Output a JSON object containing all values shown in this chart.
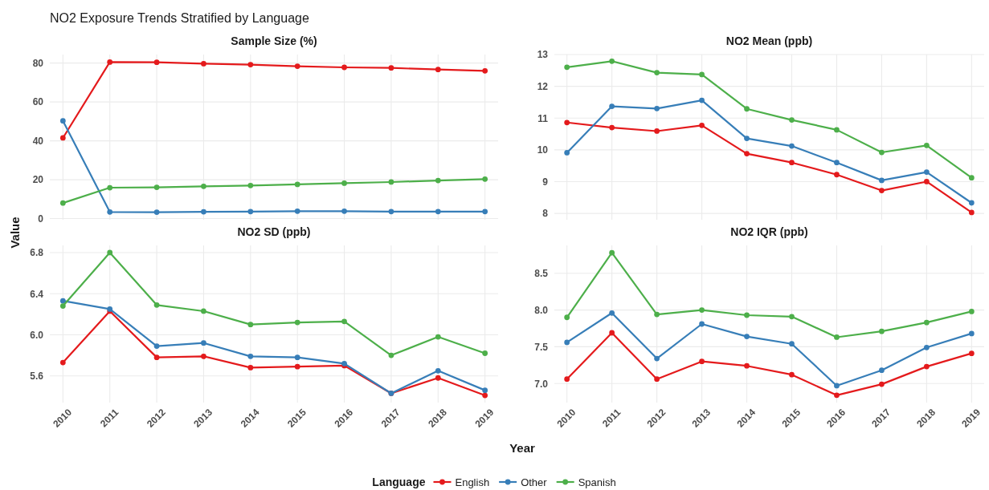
{
  "chart_data": [
    {
      "type": "line",
      "title": "Sample Size (%)",
      "annotations": [
        "NO2 Exposure Trends Stratified by Language"
      ],
      "ylabel": "Value",
      "legend_title": "Language",
      "legend": "bottom",
      "grid": true,
      "marker": "circle",
      "line_style": "solid",
      "tick_labels": "y",
      "categories": [
        "2010",
        "2011",
        "2012",
        "2013",
        "2014",
        "2015",
        "2016",
        "2017",
        "2018",
        "2019"
      ],
      "ylim": [
        -0.6,
        84.4
      ],
      "yticks": [
        0,
        20,
        40,
        60,
        80
      ],
      "series": [
        {
          "name": "English",
          "color": "#e41a1c",
          "values": [
            41.5,
            80.5,
            80.4,
            79.7,
            79.2,
            78.4,
            77.8,
            77.5,
            76.7,
            76.0
          ]
        },
        {
          "name": "Other",
          "color": "#377eb8",
          "values": [
            50.3,
            3.4,
            3.3,
            3.5,
            3.6,
            3.8,
            3.8,
            3.6,
            3.6,
            3.6
          ]
        },
        {
          "name": "Spanish",
          "color": "#4daf4a",
          "values": [
            8.0,
            15.9,
            16.1,
            16.6,
            17.0,
            17.6,
            18.2,
            18.8,
            19.6,
            20.3
          ]
        }
      ]
    },
    {
      "type": "line",
      "title": "NO2 Mean (ppb)",
      "grid": true,
      "marker": "circle",
      "line_style": "solid",
      "tick_labels": "y",
      "categories": [
        "2010",
        "2011",
        "2012",
        "2013",
        "2014",
        "2015",
        "2016",
        "2017",
        "2018",
        "2019"
      ],
      "ylim": [
        7.8,
        13.0
      ],
      "yticks": [
        8,
        9,
        10,
        11,
        12,
        13
      ],
      "series": [
        {
          "color": "#e41a1c",
          "values": [
            10.86,
            10.7,
            10.59,
            10.77,
            9.88,
            9.6,
            9.22,
            8.72,
            9.0,
            8.03
          ]
        },
        {
          "color": "#377eb8",
          "values": [
            9.91,
            11.37,
            11.3,
            11.56,
            10.36,
            10.12,
            9.6,
            9.04,
            9.3,
            8.33
          ]
        },
        {
          "color": "#4daf4a",
          "values": [
            12.6,
            12.79,
            12.43,
            12.37,
            11.29,
            10.94,
            10.63,
            9.92,
            10.14,
            9.12
          ]
        }
      ]
    },
    {
      "type": "line",
      "title": "NO2 SD (ppb)",
      "grid": true,
      "marker": "circle",
      "line_style": "solid",
      "categories": [
        "2010",
        "2011",
        "2012",
        "2013",
        "2014",
        "2015",
        "2016",
        "2017",
        "2018",
        "2019"
      ],
      "ylim": [
        5.34,
        6.87
      ],
      "yticks": [
        {
          "value": 5.6,
          "label": "5.6"
        },
        {
          "value": 6.0,
          "label": "6.0"
        },
        {
          "value": 6.4,
          "label": "6.4"
        },
        {
          "value": 6.8,
          "label": "6.8"
        }
      ],
      "series": [
        {
          "color": "#e41a1c",
          "values": [
            5.73,
            6.23,
            5.78,
            5.79,
            5.68,
            5.69,
            5.7,
            5.43,
            5.58,
            5.41
          ]
        },
        {
          "color": "#377eb8",
          "values": [
            6.33,
            6.25,
            5.89,
            5.92,
            5.79,
            5.78,
            5.72,
            5.43,
            5.65,
            5.46
          ]
        },
        {
          "color": "#4daf4a",
          "values": [
            6.28,
            6.8,
            6.29,
            6.23,
            6.1,
            6.12,
            6.13,
            5.8,
            5.98,
            5.82
          ]
        }
      ]
    },
    {
      "type": "line",
      "title": "NO2 IQR (ppb)",
      "xlabel": "Year",
      "grid": true,
      "marker": "circle",
      "line_style": "solid",
      "categories": [
        "2010",
        "2011",
        "2012",
        "2013",
        "2014",
        "2015",
        "2016",
        "2017",
        "2018",
        "2019"
      ],
      "ylim": [
        6.74,
        8.88
      ],
      "yticks": [
        {
          "value": 7.0,
          "label": "7.0"
        },
        {
          "value": 7.5,
          "label": "7.5"
        },
        {
          "value": 8.0,
          "label": "8.0"
        },
        {
          "value": 8.5,
          "label": "8.5"
        }
      ],
      "series": [
        {
          "color": "#e41a1c",
          "values": [
            7.06,
            7.69,
            7.06,
            7.3,
            7.24,
            7.12,
            6.84,
            6.99,
            7.23,
            7.41
          ]
        },
        {
          "color": "#377eb8",
          "values": [
            7.56,
            7.96,
            7.34,
            7.81,
            7.64,
            7.54,
            6.97,
            7.18,
            7.49,
            7.68
          ]
        },
        {
          "color": "#4daf4a",
          "values": [
            7.9,
            8.78,
            7.94,
            8.0,
            7.93,
            7.91,
            7.63,
            7.71,
            7.83,
            7.98
          ]
        }
      ]
    }
  ]
}
